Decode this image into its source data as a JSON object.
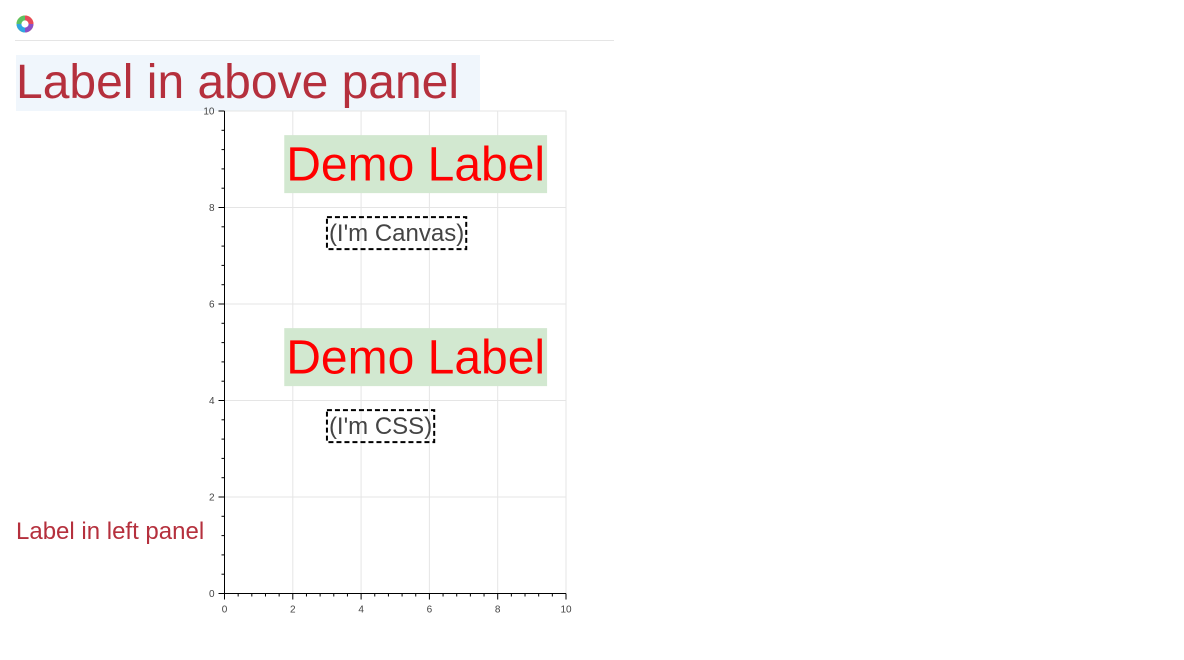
{
  "toolbar": {
    "logo_icon": "bokeh-logo-icon"
  },
  "panels": {
    "above_label": "Label in above panel",
    "left_label": "Label in left panel",
    "label_color": "#b5303d",
    "above_background": "#f0f6fc"
  },
  "chart_data": {
    "type": "scatter",
    "title": "",
    "xlabel": "",
    "ylabel": "",
    "xlim": [
      0,
      10
    ],
    "ylim": [
      0,
      10
    ],
    "x_ticks": [
      0,
      2,
      4,
      6,
      8,
      10
    ],
    "y_ticks": [
      0,
      2,
      4,
      6,
      8,
      10
    ],
    "grid": true,
    "labels": [
      {
        "name": "demo-canvas",
        "text": "Demo Label",
        "x": 1.75,
        "y": 9.5,
        "color": "#ff0000",
        "background": "#d2e8d0",
        "size": "large"
      },
      {
        "name": "note-canvas",
        "text": "(I'm Canvas)",
        "x": 3,
        "y": 7.8,
        "color": "#444444",
        "border": "dashed",
        "size": "small"
      },
      {
        "name": "demo-css",
        "text": "Demo Label",
        "x": 1.75,
        "y": 5.5,
        "color": "#ff0000",
        "background": "#d2e8d0",
        "size": "large"
      },
      {
        "name": "note-css",
        "text": "(I'm CSS)",
        "x": 3,
        "y": 3.8,
        "color": "#444444",
        "border": "dashed",
        "size": "small"
      }
    ]
  }
}
